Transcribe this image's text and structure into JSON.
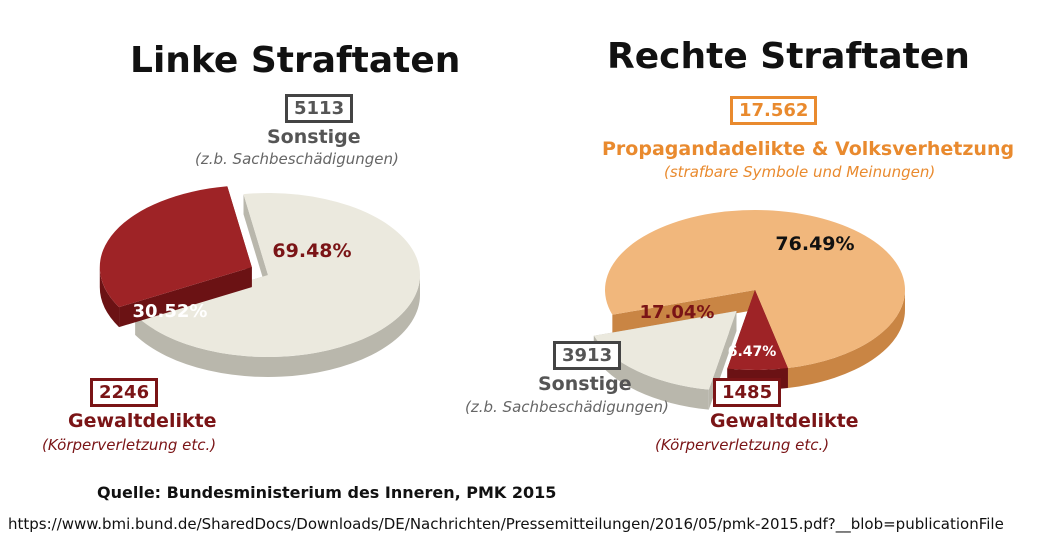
{
  "left": {
    "title": "Linke Straftaten",
    "other_count": "5113",
    "other_label": "Sonstige",
    "other_sub": "(z.b. Sachbeschädigungen)",
    "violent_count": "2246",
    "violent_label": "Gewaltdelikte",
    "violent_sub": "(Körperverletzung etc.)"
  },
  "right": {
    "title": "Rechte Straftaten",
    "prop_count": "17.562",
    "prop_label": "Propagandadelikte & Volksverhetzung",
    "prop_sub": "(strafbare Symbole und Meinungen)",
    "other_count": "3913",
    "other_label": "Sonstige",
    "other_sub": "(z.b. Sachbeschädigungen)",
    "violent_count": "1485",
    "violent_label": "Gewaltdelikte",
    "violent_sub": "(Körperverletzung etc.)"
  },
  "source": "Quelle: Bundesministerium des Inneren, PMK 2015",
  "url": "https://www.bmi.bund.de/SharedDocs/Downloads/DE/Nachrichten/Pressemitteilungen/2016/05/pmk-2015.pdf?__blob=publicationFile",
  "colors": {
    "violent": "#9e2326",
    "violent_side": "#6b1214",
    "other": "#ebe9de",
    "other_side": "#b9b7ac",
    "propaganda": "#f1b77c",
    "propaganda_side": "#c98544"
  },
  "chart_data": [
    {
      "type": "pie",
      "title": "Linke Straftaten",
      "slices": [
        {
          "name": "Sonstige",
          "value": 5113,
          "percent": 69.48,
          "label": "69.48%",
          "color": "#ebe9de"
        },
        {
          "name": "Gewaltdelikte",
          "value": 2246,
          "percent": 30.52,
          "label": "30.52%",
          "color": "#9e2326"
        }
      ]
    },
    {
      "type": "pie",
      "title": "Rechte Straftaten",
      "slices": [
        {
          "name": "Propagandadelikte & Volksverhetzung",
          "value": 17562,
          "percent": 76.49,
          "label": "76.49%",
          "color": "#f1b77c"
        },
        {
          "name": "Gewaltdelikte",
          "value": 1485,
          "percent": 6.47,
          "label": "6.47%",
          "color": "#9e2326"
        },
        {
          "name": "Sonstige",
          "value": 3913,
          "percent": 17.04,
          "label": "17.04%",
          "color": "#ebe9de"
        }
      ]
    }
  ]
}
